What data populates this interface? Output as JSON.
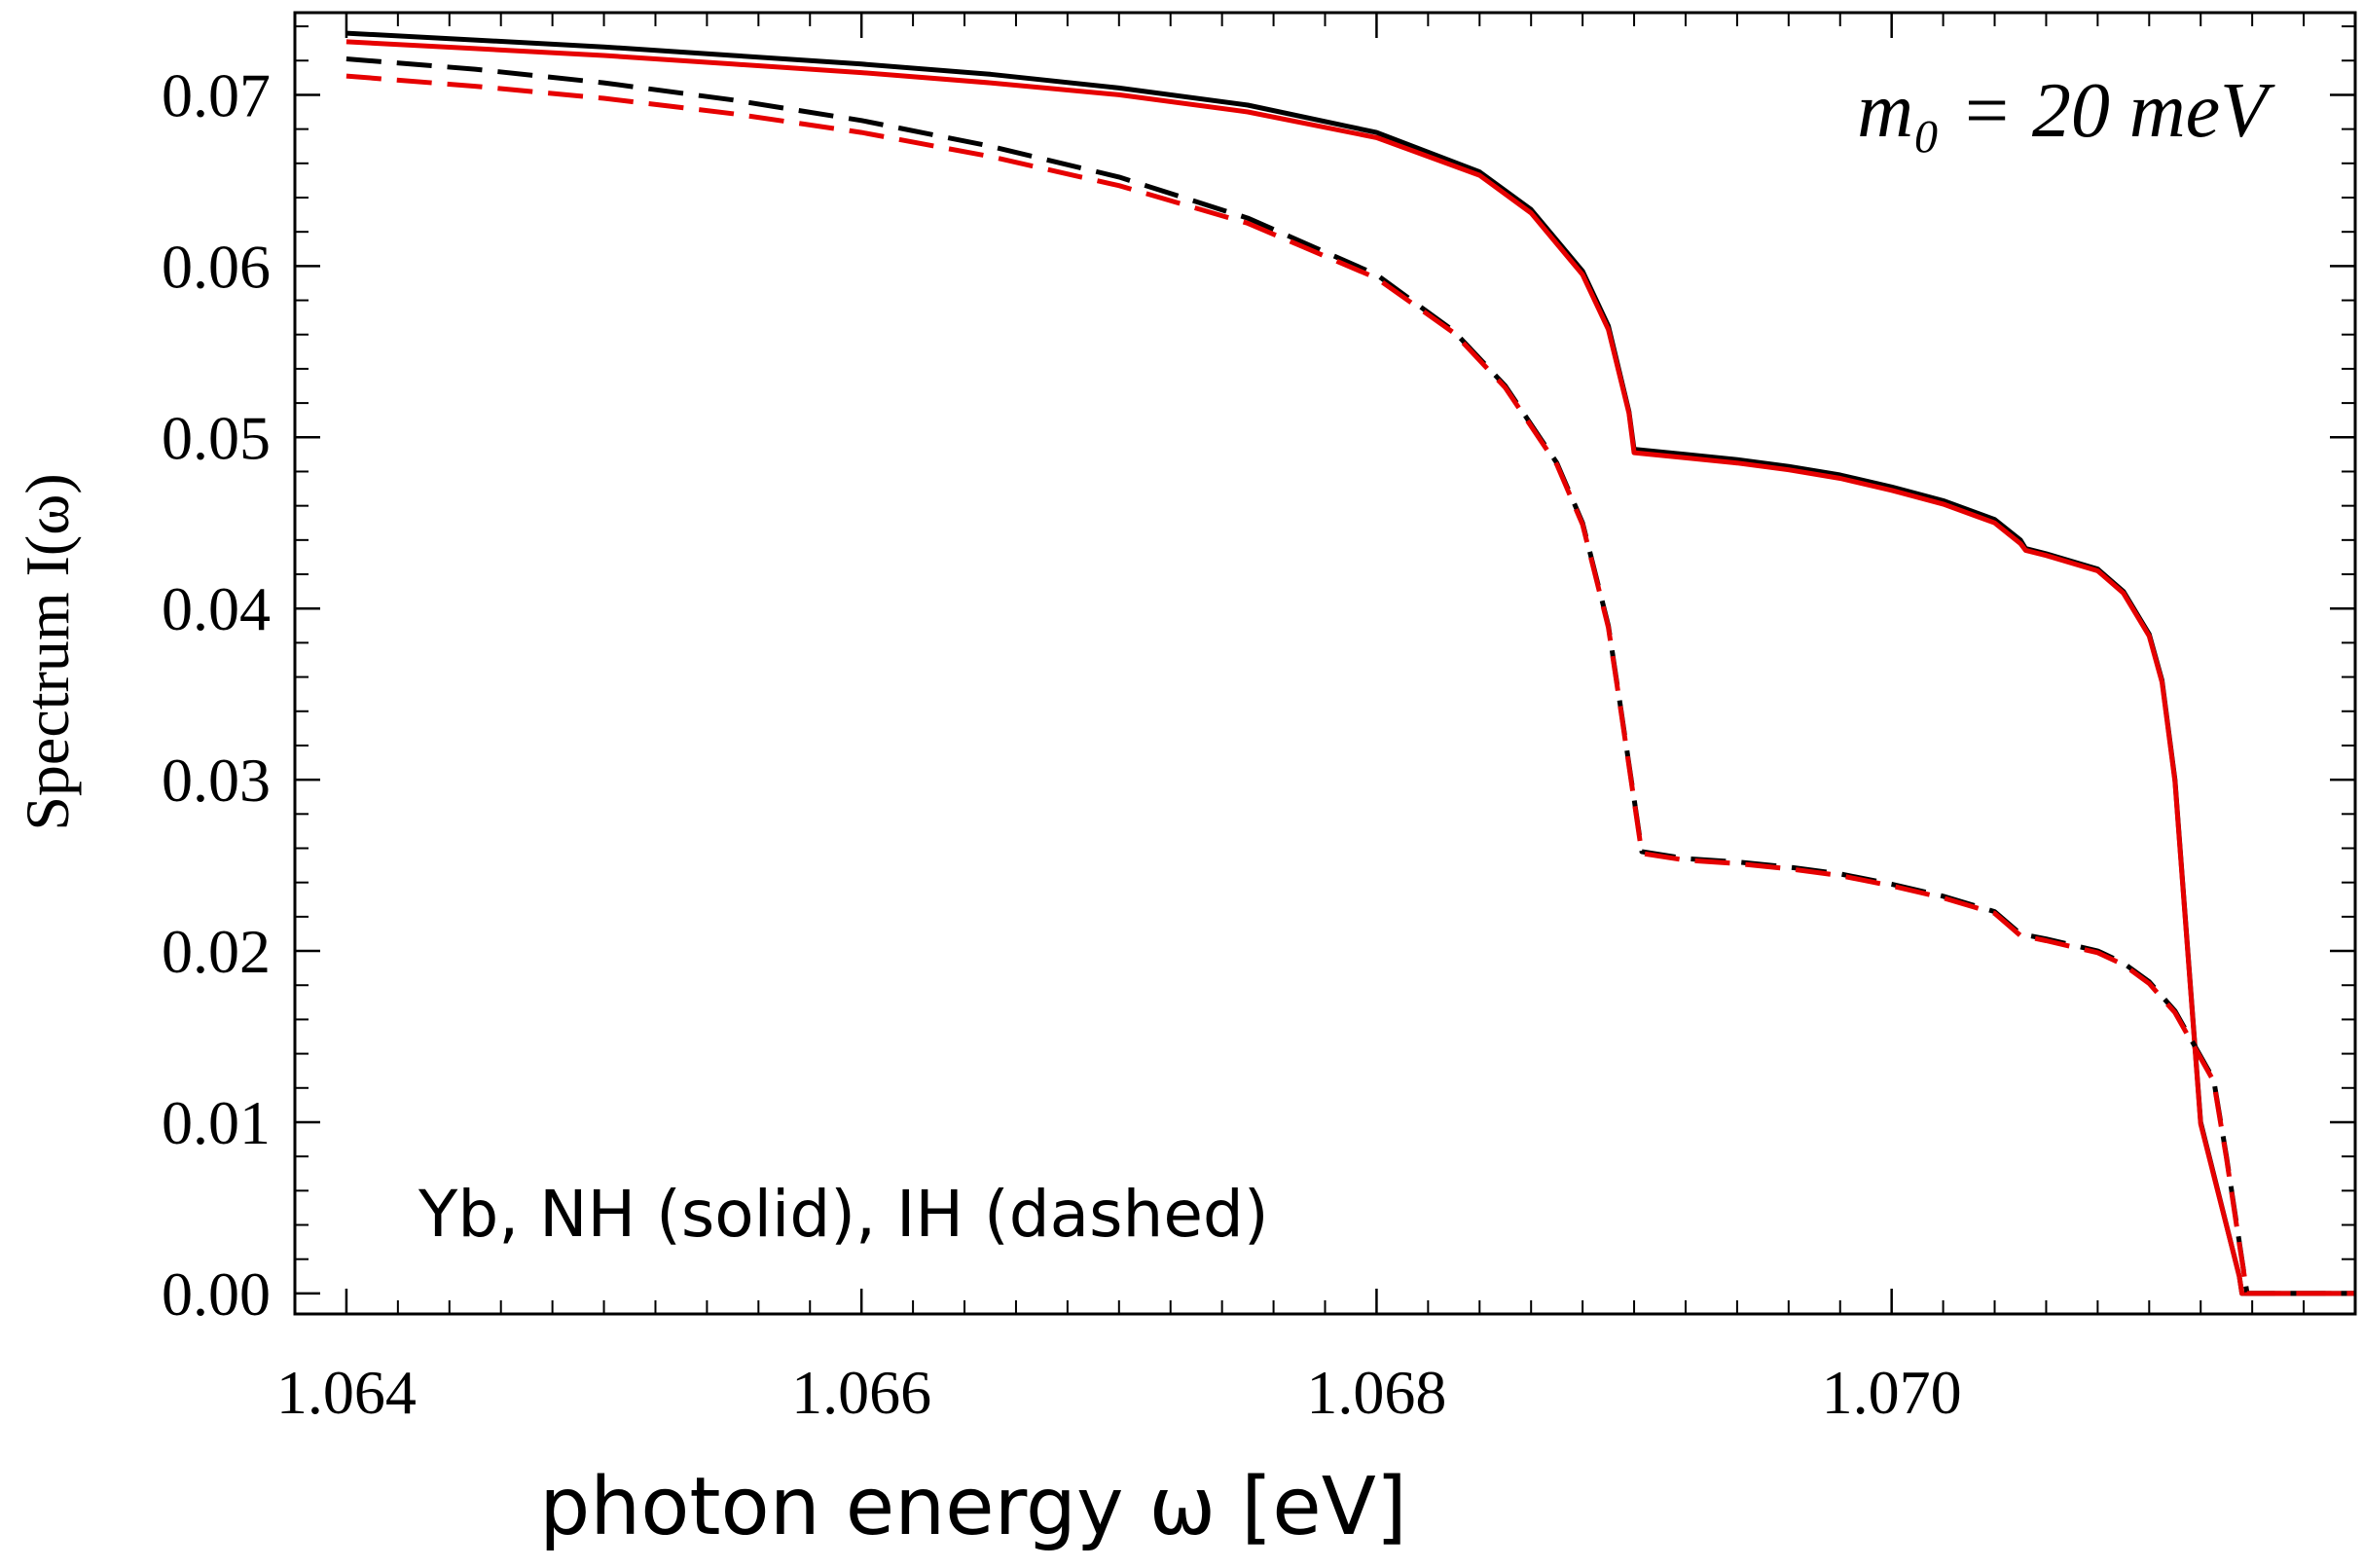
{
  "chart_data": {
    "type": "line",
    "xlabel": "photon energy ω  [eV]",
    "ylabel": "Spectrum I(ω)",
    "annotations": {
      "mass": "m₀ = 20 meV",
      "legend_note": "Yb, NH (solid), IH (dashed)"
    },
    "xlim": [
      1.0638,
      1.0718
    ],
    "ylim": [
      -0.0012,
      0.0748
    ],
    "x_ticks": [
      1.064,
      1.066,
      1.068,
      1.07
    ],
    "x_tick_labels": [
      "1.064",
      "1.066",
      "1.068",
      "1.070"
    ],
    "y_ticks": [
      0.0,
      0.01,
      0.02,
      0.03,
      0.04,
      0.05,
      0.06,
      0.07
    ],
    "y_tick_labels": [
      "0.00",
      "0.01",
      "0.02",
      "0.03",
      "0.04",
      "0.05",
      "0.06",
      "0.07"
    ],
    "grid": false,
    "series": [
      {
        "color": "#000000",
        "dash": "solid",
        "x": [
          1.064,
          1.0645,
          1.065,
          1.0655,
          1.066,
          1.0665,
          1.067,
          1.0675,
          1.068,
          1.0684,
          1.0686,
          1.0688,
          1.0689,
          1.06898,
          1.069,
          1.0692,
          1.0694,
          1.0696,
          1.0698,
          1.07,
          1.0702,
          1.0704,
          1.0705,
          1.07052,
          1.0706,
          1.0708,
          1.0709,
          1.071,
          1.07105,
          1.0711,
          1.07113,
          1.0712,
          1.07135,
          1.07136,
          1.0714,
          1.0716,
          1.0718
        ],
        "y": [
          0.0736,
          0.0732,
          0.0728,
          0.0723,
          0.0718,
          0.0712,
          0.0704,
          0.0694,
          0.0678,
          0.0655,
          0.0633,
          0.0597,
          0.0565,
          0.0515,
          0.0493,
          0.049,
          0.0487,
          0.0483,
          0.0478,
          0.0471,
          0.0463,
          0.0452,
          0.044,
          0.0435,
          0.0432,
          0.0423,
          0.041,
          0.0385,
          0.0358,
          0.03,
          0.024,
          0.01,
          0.001,
          0.0,
          0.0,
          0.0,
          0.0
        ]
      },
      {
        "color": "#e60000",
        "dash": "solid",
        "x": [
          1.064,
          1.0645,
          1.065,
          1.0655,
          1.066,
          1.0665,
          1.067,
          1.0675,
          1.068,
          1.0684,
          1.0686,
          1.0688,
          1.0689,
          1.06898,
          1.069,
          1.0692,
          1.0694,
          1.0696,
          1.0698,
          1.07,
          1.0702,
          1.0704,
          1.0705,
          1.07052,
          1.0706,
          1.0708,
          1.0709,
          1.071,
          1.07105,
          1.0711,
          1.07113,
          1.0712,
          1.07135,
          1.07136,
          1.0714,
          1.0716,
          1.0718
        ],
        "y": [
          0.0731,
          0.0727,
          0.0723,
          0.0718,
          0.0713,
          0.0707,
          0.07,
          0.069,
          0.0675,
          0.0653,
          0.0631,
          0.0595,
          0.0563,
          0.0514,
          0.0491,
          0.0488,
          0.0485,
          0.0481,
          0.0476,
          0.0469,
          0.0461,
          0.045,
          0.0438,
          0.0434,
          0.0431,
          0.0422,
          0.0409,
          0.0384,
          0.0357,
          0.0299,
          0.0239,
          0.0099,
          0.001,
          0.0,
          0.0,
          0.0,
          0.0
        ]
      },
      {
        "color": "#000000",
        "dash": "dashed",
        "x": [
          1.064,
          1.0645,
          1.065,
          1.0655,
          1.066,
          1.0665,
          1.067,
          1.0675,
          1.068,
          1.0683,
          1.0685,
          1.0687,
          1.0688,
          1.0689,
          1.06895,
          1.06903,
          1.0692,
          1.0694,
          1.0696,
          1.0698,
          1.07,
          1.0702,
          1.0704,
          1.0705,
          1.0706,
          1.0708,
          1.0709,
          1.071,
          1.0711,
          1.07125,
          1.0713,
          1.07135,
          1.07138,
          1.0714,
          1.0716,
          1.0718
        ],
        "y": [
          0.0721,
          0.0715,
          0.0707,
          0.0697,
          0.0685,
          0.067,
          0.0652,
          0.0628,
          0.0595,
          0.0562,
          0.053,
          0.0485,
          0.045,
          0.039,
          0.034,
          0.0258,
          0.0254,
          0.0252,
          0.0249,
          0.0245,
          0.0239,
          0.0232,
          0.0223,
          0.021,
          0.0207,
          0.02,
          0.0193,
          0.0182,
          0.0165,
          0.0125,
          0.008,
          0.003,
          0.0,
          0.0,
          0.0,
          0.0
        ]
      },
      {
        "color": "#e60000",
        "dash": "dashed",
        "x": [
          1.064,
          1.0645,
          1.065,
          1.0655,
          1.066,
          1.0665,
          1.067,
          1.0675,
          1.068,
          1.0683,
          1.0685,
          1.0687,
          1.0688,
          1.0689,
          1.06895,
          1.06903,
          1.0692,
          1.0694,
          1.0696,
          1.0698,
          1.07,
          1.0702,
          1.0704,
          1.0705,
          1.0706,
          1.0708,
          1.0709,
          1.071,
          1.0711,
          1.07125,
          1.0713,
          1.07135,
          1.07138,
          1.0714,
          1.0716,
          1.0718
        ],
        "y": [
          0.0711,
          0.0705,
          0.0698,
          0.0689,
          0.0678,
          0.0664,
          0.0647,
          0.0625,
          0.0593,
          0.0561,
          0.0529,
          0.0484,
          0.0449,
          0.0389,
          0.0339,
          0.0257,
          0.0253,
          0.0251,
          0.0248,
          0.0244,
          0.0238,
          0.0231,
          0.0222,
          0.0209,
          0.0206,
          0.0199,
          0.0192,
          0.0181,
          0.0164,
          0.0124,
          0.0079,
          0.0029,
          0.0,
          0.0,
          0.0,
          0.0
        ]
      }
    ]
  }
}
